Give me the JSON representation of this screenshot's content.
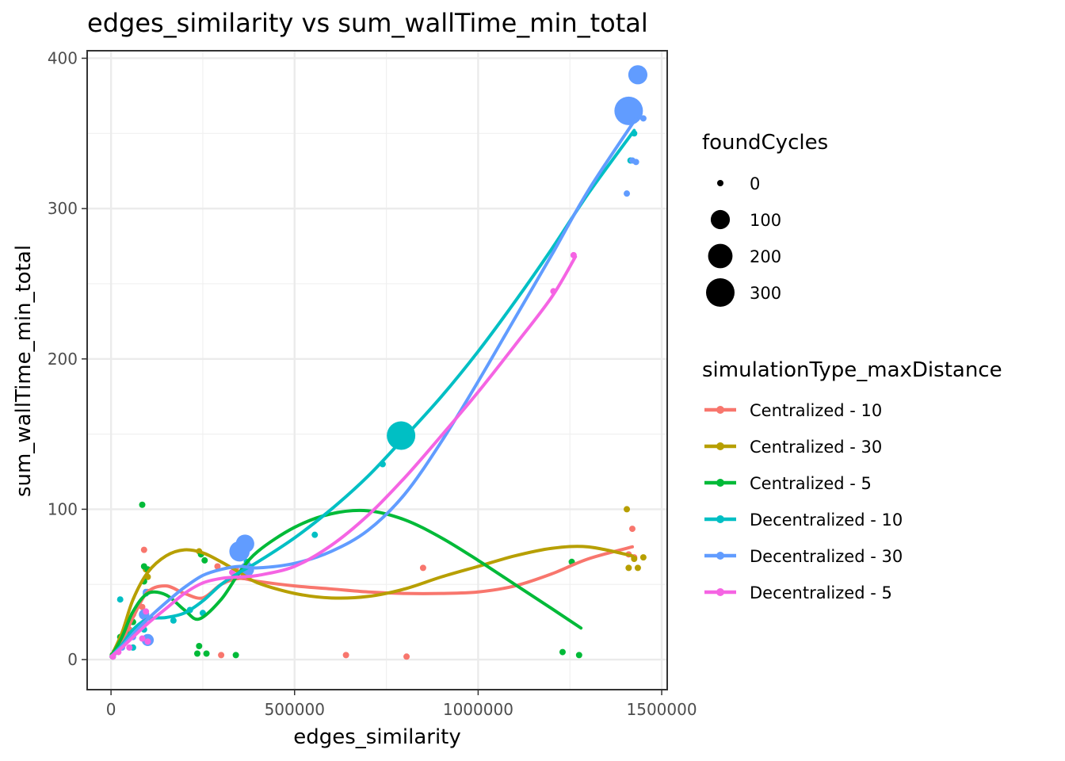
{
  "chart_data": {
    "type": "scatter",
    "title": "edges_similarity  vs  sum_wallTime_min_total",
    "xlabel": "edges_similarity",
    "ylabel": "sum_wallTime_min_total",
    "xlim": [
      -65000,
      1515000
    ],
    "ylim": [
      -20,
      405
    ],
    "x_ticks": [
      0,
      500000,
      1000000,
      1500000
    ],
    "x_tick_labels": [
      "0",
      "500000",
      "1000000",
      "1500000"
    ],
    "y_ticks": [
      0,
      100,
      200,
      300,
      400
    ],
    "y_tick_labels": [
      "0",
      "100",
      "200",
      "300",
      "400"
    ],
    "grid": true,
    "size_legend": {
      "title": "foundCycles",
      "items": [
        {
          "label": "0",
          "value": 0
        },
        {
          "label": "100",
          "value": 100
        },
        {
          "label": "200",
          "value": 200
        },
        {
          "label": "300",
          "value": 300
        }
      ]
    },
    "color_legend": {
      "title": "simulationType_maxDistance",
      "placement": "right"
    },
    "series": [
      {
        "name": "Centralized - 10",
        "color": "#F8766D",
        "points": [
          [
            5000,
            2,
            0
          ],
          [
            20000,
            8,
            0
          ],
          [
            50000,
            20,
            0
          ],
          [
            85000,
            35,
            0
          ],
          [
            90000,
            73,
            0
          ],
          [
            100000,
            45,
            0
          ],
          [
            300000,
            3,
            0
          ],
          [
            290000,
            62,
            0
          ],
          [
            340000,
            60,
            0
          ],
          [
            640000,
            3,
            0
          ],
          [
            805000,
            2,
            0
          ],
          [
            850000,
            61,
            0
          ],
          [
            1410000,
            70,
            0
          ],
          [
            1420000,
            87,
            0
          ],
          [
            1425000,
            68,
            0
          ]
        ],
        "smooth": [
          [
            0,
            2
          ],
          [
            30000,
            12
          ],
          [
            60000,
            28
          ],
          [
            100000,
            45
          ],
          [
            150000,
            49
          ],
          [
            200000,
            44
          ],
          [
            250000,
            41
          ],
          [
            300000,
            50
          ],
          [
            350000,
            54
          ],
          [
            400000,
            52
          ],
          [
            500000,
            49
          ],
          [
            600000,
            47
          ],
          [
            700000,
            45
          ],
          [
            800000,
            44
          ],
          [
            900000,
            44
          ],
          [
            1000000,
            45
          ],
          [
            1100000,
            49
          ],
          [
            1200000,
            57
          ],
          [
            1300000,
            67
          ],
          [
            1420000,
            75
          ]
        ]
      },
      {
        "name": "Centralized - 30",
        "color": "#B79F00",
        "points": [
          [
            5000,
            3,
            0
          ],
          [
            30000,
            12,
            0
          ],
          [
            60000,
            30,
            0
          ],
          [
            95000,
            60,
            0
          ],
          [
            100000,
            55,
            0
          ],
          [
            240000,
            72,
            0
          ],
          [
            1405000,
            100,
            0
          ],
          [
            1410000,
            61,
            0
          ],
          [
            1425000,
            67,
            0
          ],
          [
            1435000,
            61,
            0
          ],
          [
            1450000,
            68,
            0
          ]
        ],
        "smooth": [
          [
            0,
            2
          ],
          [
            30000,
            18
          ],
          [
            60000,
            40
          ],
          [
            100000,
            58
          ],
          [
            150000,
            69
          ],
          [
            200000,
            73
          ],
          [
            250000,
            71
          ],
          [
            300000,
            65
          ],
          [
            350000,
            58
          ],
          [
            400000,
            51
          ],
          [
            500000,
            44
          ],
          [
            600000,
            41
          ],
          [
            700000,
            42
          ],
          [
            800000,
            47
          ],
          [
            900000,
            55
          ],
          [
            1000000,
            62
          ],
          [
            1100000,
            69
          ],
          [
            1200000,
            74
          ],
          [
            1300000,
            75
          ],
          [
            1420000,
            69
          ]
        ]
      },
      {
        "name": "Centralized - 5",
        "color": "#00BA38",
        "points": [
          [
            5000,
            3,
            0
          ],
          [
            25000,
            15,
            0
          ],
          [
            40000,
            18,
            0
          ],
          [
            60000,
            25,
            0
          ],
          [
            85000,
            103,
            0
          ],
          [
            90000,
            62,
            0
          ],
          [
            100000,
            60,
            0
          ],
          [
            90000,
            52,
            0
          ],
          [
            235000,
            4,
            0
          ],
          [
            240000,
            9,
            0
          ],
          [
            245000,
            70,
            0
          ],
          [
            255000,
            66,
            0
          ],
          [
            260000,
            4,
            0
          ],
          [
            340000,
            3,
            0
          ],
          [
            1255000,
            65,
            0
          ],
          [
            1230000,
            5,
            0
          ],
          [
            1275000,
            3,
            0
          ]
        ],
        "smooth": [
          [
            0,
            2
          ],
          [
            30000,
            15
          ],
          [
            60000,
            32
          ],
          [
            100000,
            44
          ],
          [
            150000,
            43
          ],
          [
            200000,
            33
          ],
          [
            240000,
            27
          ],
          [
            300000,
            40
          ],
          [
            350000,
            58
          ],
          [
            400000,
            72
          ],
          [
            500000,
            88
          ],
          [
            600000,
            97
          ],
          [
            700000,
            99
          ],
          [
            800000,
            93
          ],
          [
            900000,
            81
          ],
          [
            1000000,
            66
          ],
          [
            1100000,
            50
          ],
          [
            1200000,
            34
          ],
          [
            1280000,
            21
          ]
        ]
      },
      {
        "name": "Decentralized - 10",
        "color": "#00BFC4",
        "points": [
          [
            10000,
            5,
            0
          ],
          [
            25000,
            40,
            0
          ],
          [
            60000,
            8,
            0
          ],
          [
            90000,
            20,
            0
          ],
          [
            95000,
            44,
            0
          ],
          [
            170000,
            26,
            0
          ],
          [
            215000,
            33,
            0
          ],
          [
            250000,
            31,
            0
          ],
          [
            360000,
            55,
            0
          ],
          [
            370000,
            65,
            0
          ],
          [
            555000,
            83,
            0
          ],
          [
            740000,
            130,
            0
          ],
          [
            790000,
            149,
            300
          ],
          [
            1415000,
            332,
            0
          ],
          [
            1425000,
            350,
            0
          ]
        ],
        "smooth": [
          [
            0,
            2
          ],
          [
            30000,
            10
          ],
          [
            60000,
            20
          ],
          [
            100000,
            27
          ],
          [
            150000,
            28
          ],
          [
            200000,
            31
          ],
          [
            250000,
            39
          ],
          [
            300000,
            50
          ],
          [
            350000,
            58
          ],
          [
            400000,
            65
          ],
          [
            500000,
            81
          ],
          [
            600000,
            100
          ],
          [
            700000,
            122
          ],
          [
            800000,
            148
          ],
          [
            900000,
            175
          ],
          [
            1000000,
            205
          ],
          [
            1100000,
            238
          ],
          [
            1200000,
            273
          ],
          [
            1300000,
            310
          ],
          [
            1425000,
            352
          ]
        ]
      },
      {
        "name": "Decentralized - 30",
        "color": "#619CFF",
        "points": [
          [
            5000,
            2,
            0
          ],
          [
            30000,
            8,
            0
          ],
          [
            60000,
            15,
            0
          ],
          [
            90000,
            30,
            10
          ],
          [
            95000,
            45,
            0
          ],
          [
            100000,
            13,
            20
          ],
          [
            350000,
            72,
            120
          ],
          [
            365000,
            77,
            90
          ],
          [
            370000,
            60,
            40
          ],
          [
            1405000,
            310,
            0
          ],
          [
            1410000,
            365,
            300
          ],
          [
            1420000,
            332,
            0
          ],
          [
            1430000,
            331,
            0
          ],
          [
            1435000,
            389,
            100
          ],
          [
            1450000,
            360,
            0
          ]
        ],
        "smooth": [
          [
            0,
            2
          ],
          [
            30000,
            9
          ],
          [
            60000,
            17
          ],
          [
            100000,
            27
          ],
          [
            150000,
            38
          ],
          [
            200000,
            48
          ],
          [
            250000,
            56
          ],
          [
            300000,
            60
          ],
          [
            350000,
            62
          ],
          [
            400000,
            61
          ],
          [
            500000,
            64
          ],
          [
            600000,
            72
          ],
          [
            700000,
            86
          ],
          [
            800000,
            110
          ],
          [
            900000,
            145
          ],
          [
            1000000,
            185
          ],
          [
            1100000,
            227
          ],
          [
            1200000,
            269
          ],
          [
            1300000,
            312
          ],
          [
            1430000,
            360
          ]
        ]
      },
      {
        "name": "Decentralized - 5",
        "color": "#F564E3",
        "points": [
          [
            5000,
            2,
            0
          ],
          [
            20000,
            5,
            0
          ],
          [
            50000,
            8,
            0
          ],
          [
            85000,
            14,
            0
          ],
          [
            90000,
            25,
            0
          ],
          [
            95000,
            32,
            0
          ],
          [
            100000,
            12,
            0
          ],
          [
            330000,
            58,
            0
          ],
          [
            345000,
            55,
            0
          ],
          [
            1205000,
            245,
            0
          ],
          [
            1260000,
            269,
            0
          ]
        ],
        "smooth": [
          [
            0,
            2
          ],
          [
            30000,
            8
          ],
          [
            60000,
            15
          ],
          [
            100000,
            24
          ],
          [
            150000,
            34
          ],
          [
            200000,
            44
          ],
          [
            250000,
            51
          ],
          [
            300000,
            54
          ],
          [
            350000,
            55
          ],
          [
            400000,
            56
          ],
          [
            500000,
            62
          ],
          [
            600000,
            76
          ],
          [
            700000,
            96
          ],
          [
            800000,
            121
          ],
          [
            900000,
            149
          ],
          [
            1000000,
            178
          ],
          [
            1100000,
            209
          ],
          [
            1200000,
            241
          ],
          [
            1265000,
            268
          ]
        ]
      }
    ]
  }
}
